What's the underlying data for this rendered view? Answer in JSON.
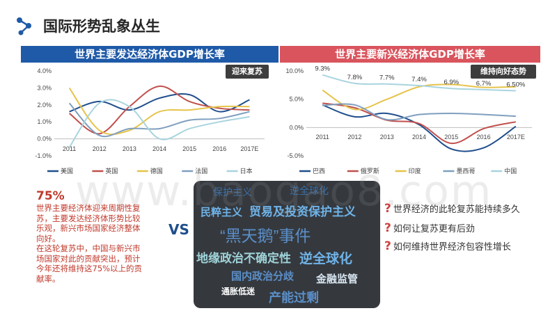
{
  "page": {
    "title": "国际形势乱象丛生"
  },
  "colors": {
    "developed_header": "#1f5aa8",
    "emerging_header": "#d9545d",
    "accent_red": "#c0392b",
    "cloud_bg": "#35393e"
  },
  "chart_data": [
    {
      "type": "line",
      "title": "世界主要发达经济体GDP增长率",
      "tag": "迎来复苏",
      "categories": [
        "2011",
        "2012",
        "2013",
        "2014",
        "2015",
        "2016",
        "2017E"
      ],
      "y_ticks": [
        "4.0%",
        "3.0%",
        "2.0%",
        "1.0%",
        "0.0%",
        "-1.0%"
      ],
      "ylim": [
        -1.0,
        4.0
      ],
      "grid": false,
      "legend_position": "bottom",
      "series": [
        {
          "name": "美国",
          "color": "#1f4e8c",
          "values": [
            1.6,
            2.2,
            1.7,
            2.4,
            2.6,
            1.6,
            2.3
          ]
        },
        {
          "name": "英国",
          "color": "#c0504d",
          "values": [
            1.5,
            0.3,
            1.9,
            3.1,
            2.2,
            1.8,
            1.7
          ]
        },
        {
          "name": "德国",
          "color": "#e6c34a",
          "values": [
            3.0,
            0.5,
            0.5,
            1.6,
            1.7,
            1.9,
            1.9
          ]
        },
        {
          "name": "法国",
          "color": "#7f9fbf",
          "values": [
            2.1,
            0.2,
            0.6,
            0.6,
            1.1,
            1.2,
            1.6
          ]
        },
        {
          "name": "日本",
          "color": "#a8d4de",
          "values": [
            -0.5,
            2.1,
            1.9,
            0.0,
            0.6,
            1.0,
            1.3
          ]
        }
      ]
    },
    {
      "type": "line",
      "title": "世界主要新兴经济体GDP增长率",
      "tag": "维持向好态势",
      "categories": [
        "2011",
        "2012",
        "2013",
        "2014",
        "2015",
        "2016",
        "2017E"
      ],
      "y_ticks": [
        "10.0%",
        "5.0%",
        "0.0%",
        "-5.0%"
      ],
      "ylim": [
        -5.0,
        10.0
      ],
      "grid": false,
      "legend_position": "bottom",
      "data_labels": [
        {
          "text": "9.3%",
          "x_index": 0,
          "value": 9.3
        },
        {
          "text": "7.8%",
          "x_index": 1,
          "value": 7.8
        },
        {
          "text": "7.7%",
          "x_index": 2,
          "value": 7.7
        },
        {
          "text": "7.4%",
          "x_index": 3,
          "value": 7.4
        },
        {
          "text": "6.9%",
          "x_index": 4,
          "value": 6.9
        },
        {
          "text": "6.7%",
          "x_index": 5,
          "value": 6.7
        },
        {
          "text": "6.50%",
          "x_index": 6,
          "value": 6.5
        }
      ],
      "series": [
        {
          "name": "巴西",
          "color": "#1f4e8c",
          "values": [
            4.0,
            1.9,
            2.5,
            0.5,
            -3.8,
            -3.6,
            0.2
          ]
        },
        {
          "name": "俄罗斯",
          "color": "#c0504d",
          "values": [
            4.3,
            3.5,
            1.3,
            0.7,
            -2.8,
            -0.2,
            1.0
          ]
        },
        {
          "name": "印度",
          "color": "#e6c34a",
          "values": [
            6.6,
            3.2,
            5.0,
            7.2,
            7.6,
            7.1,
            7.2
          ]
        },
        {
          "name": "墨西哥",
          "color": "#7f9fbf",
          "values": [
            3.9,
            4.0,
            1.4,
            2.3,
            2.5,
            2.3,
            2.0
          ]
        },
        {
          "name": "中国",
          "color": "#a8d4de",
          "values": [
            9.3,
            7.8,
            7.7,
            7.4,
            6.9,
            6.7,
            6.5
          ]
        }
      ]
    }
  ],
  "left_note": {
    "big": "75%",
    "lines": [
      "世界主要经济体迎来周期性复",
      "苏，主要发达经济体形势比较",
      "乐观，新兴市场国家经济整体",
      "向好。",
      "在这轮复苏中，中国与新兴市",
      "场国家对此的贡献突出，预计",
      "今年还将维持这75%以上的贡",
      "献率。"
    ]
  },
  "vs_label": "VS",
  "word_cloud": [
    "保护主义",
    "逆全球化",
    "民粹主义",
    "贸易及投资保护主义",
    "“黑天鹅”事件",
    "地缘政治不确定性",
    "逆全球化",
    "国内政治分歧",
    "金融监管",
    "通胀低迷",
    "产能过剩"
  ],
  "questions": [
    "世界经济的此轮复苏能持续多久",
    "如何让复苏更有后劲",
    "如何维持世界经济包容性增长"
  ],
  "question_mark": "?",
  "watermark": "www.baogao8.com"
}
